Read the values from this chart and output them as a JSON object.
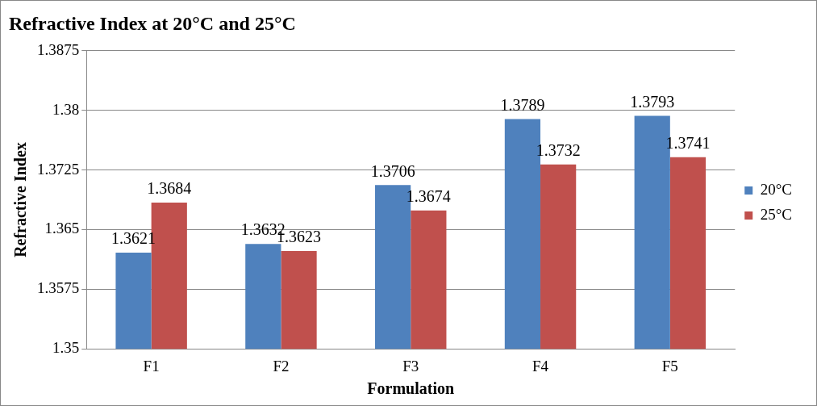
{
  "chart_data": {
    "type": "bar",
    "title": "Refractive Index at 20°C and 25°C",
    "xlabel": "Formulation",
    "ylabel": "Refractive Index",
    "categories": [
      "F1",
      "F2",
      "F3",
      "F4",
      "F5"
    ],
    "series": [
      {
        "name": "20°C",
        "color": "#4f81bd",
        "values": [
          1.3621,
          1.3632,
          1.3706,
          1.3789,
          1.3793
        ]
      },
      {
        "name": "25°C",
        "color": "#c0504d",
        "values": [
          1.3684,
          1.3623,
          1.3674,
          1.3732,
          1.3741
        ]
      }
    ],
    "ylim": [
      1.35,
      1.3875
    ],
    "yticks": [
      1.35,
      1.3575,
      1.365,
      1.3725,
      1.38,
      1.3875
    ],
    "grid": "y",
    "legend": "right",
    "data_labels": true
  }
}
